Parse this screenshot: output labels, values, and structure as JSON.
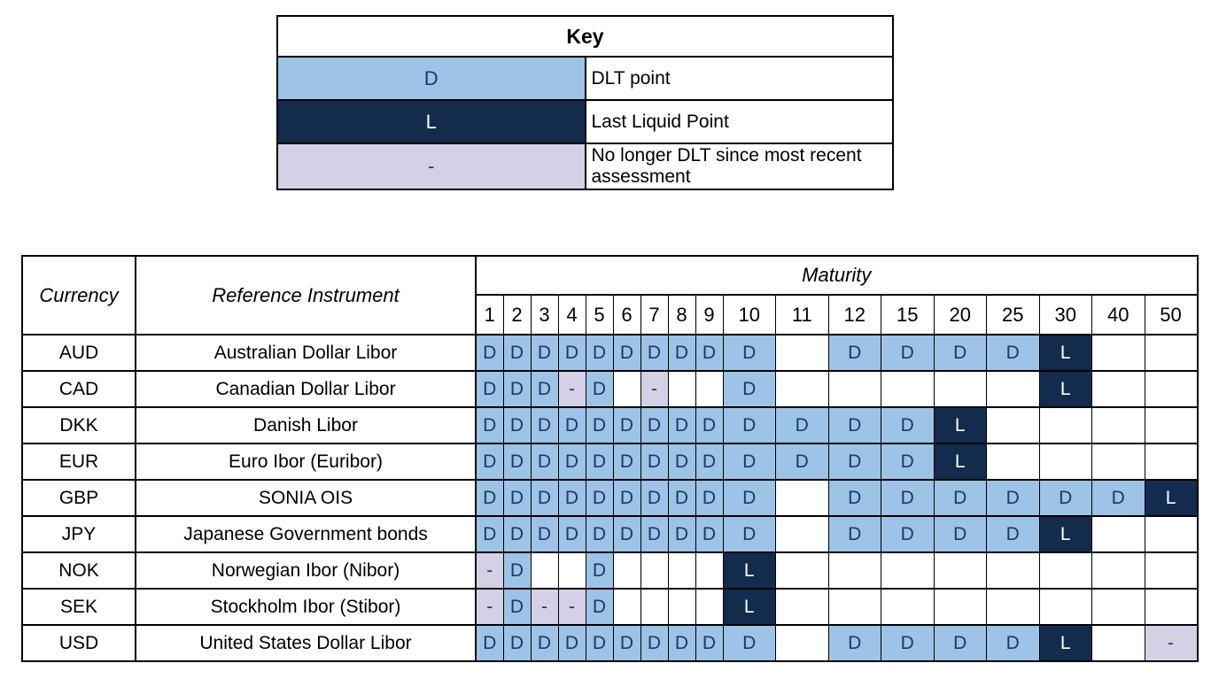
{
  "key": {
    "title": "Key",
    "items": [
      {
        "symbol": "D",
        "style": "dlt",
        "label": "DLT point"
      },
      {
        "symbol": "L",
        "style": "llp",
        "label": "Last Liquid Point"
      },
      {
        "symbol": "-",
        "style": "ndlt",
        "label": "No longer DLT since most recent assessment"
      }
    ]
  },
  "table": {
    "currency_header": "Currency",
    "instrument_header": "Reference Instrument",
    "maturity_header": "Maturity",
    "maturities": [
      "1",
      "2",
      "3",
      "4",
      "5",
      "6",
      "7",
      "8",
      "9",
      "10",
      "11",
      "12",
      "15",
      "20",
      "25",
      "30",
      "40",
      "50"
    ],
    "rows": [
      {
        "currency": "AUD",
        "instrument": "Australian Dollar Libor",
        "cells": [
          "D",
          "D",
          "D",
          "D",
          "D",
          "D",
          "D",
          "D",
          "D",
          "D",
          "",
          "D",
          "D",
          "D",
          "D",
          "L",
          "",
          ""
        ]
      },
      {
        "currency": "CAD",
        "instrument": "Canadian Dollar Libor",
        "cells": [
          "D",
          "D",
          "D",
          "-",
          "D",
          "",
          "-",
          "",
          "",
          "D",
          "",
          "",
          "",
          "",
          "",
          "L",
          "",
          ""
        ]
      },
      {
        "currency": "DKK",
        "instrument": "Danish Libor",
        "cells": [
          "D",
          "D",
          "D",
          "D",
          "D",
          "D",
          "D",
          "D",
          "D",
          "D",
          "D",
          "D",
          "D",
          "L",
          "",
          "",
          "",
          ""
        ]
      },
      {
        "currency": "EUR",
        "instrument": "Euro Ibor (Euribor)",
        "cells": [
          "D",
          "D",
          "D",
          "D",
          "D",
          "D",
          "D",
          "D",
          "D",
          "D",
          "D",
          "D",
          "D",
          "L",
          "",
          "",
          "",
          ""
        ]
      },
      {
        "currency": "GBP",
        "instrument": "SONIA OIS",
        "cells": [
          "D",
          "D",
          "D",
          "D",
          "D",
          "D",
          "D",
          "D",
          "D",
          "D",
          "",
          "D",
          "D",
          "D",
          "D",
          "D",
          "D",
          "L"
        ]
      },
      {
        "currency": "JPY",
        "instrument": "Japanese Government bonds",
        "cells": [
          "D",
          "D",
          "D",
          "D",
          "D",
          "D",
          "D",
          "D",
          "D",
          "D",
          "",
          "D",
          "D",
          "D",
          "D",
          "L",
          "",
          ""
        ]
      },
      {
        "currency": "NOK",
        "instrument": "Norwegian Ibor (Nibor)",
        "cells": [
          "-",
          "D",
          "",
          "",
          "D",
          "",
          "",
          "",
          "",
          "L",
          "",
          "",
          "",
          "",
          "",
          "",
          "",
          ""
        ]
      },
      {
        "currency": "SEK",
        "instrument": "Stockholm Ibor (Stibor)",
        "cells": [
          "-",
          "D",
          "-",
          "-",
          "D",
          "",
          "",
          "",
          "",
          "L",
          "",
          "",
          "",
          "",
          "",
          "",
          "",
          ""
        ]
      },
      {
        "currency": "USD",
        "instrument": "United States Dollar Libor",
        "cells": [
          "D",
          "D",
          "D",
          "D",
          "D",
          "D",
          "D",
          "D",
          "D",
          "D",
          "",
          "D",
          "D",
          "D",
          "D",
          "L",
          "",
          "-"
        ]
      }
    ]
  },
  "colors": {
    "dlt_point": "#9DC3E6",
    "last_liquid_point": "#132B4D",
    "no_longer_dlt": "#D5D0E5",
    "cell_text_dark": "#1F3864",
    "border": "#000000"
  },
  "chart_data": {
    "type": "table",
    "columns": [
      "Currency",
      "Reference Instrument",
      "1",
      "2",
      "3",
      "4",
      "5",
      "6",
      "7",
      "8",
      "9",
      "10",
      "11",
      "12",
      "15",
      "20",
      "25",
      "30",
      "40",
      "50"
    ],
    "legend": {
      "D": "DLT point",
      "L": "Last Liquid Point",
      "-": "No longer DLT since most recent assessment"
    },
    "rows": [
      [
        "AUD",
        "Australian Dollar Libor",
        "D",
        "D",
        "D",
        "D",
        "D",
        "D",
        "D",
        "D",
        "D",
        "D",
        "",
        "D",
        "D",
        "D",
        "D",
        "L",
        "",
        ""
      ],
      [
        "CAD",
        "Canadian Dollar Libor",
        "D",
        "D",
        "D",
        "-",
        "D",
        "",
        "-",
        "",
        "",
        "D",
        "",
        "",
        "",
        "",
        "",
        "L",
        "",
        ""
      ],
      [
        "DKK",
        "Danish Libor",
        "D",
        "D",
        "D",
        "D",
        "D",
        "D",
        "D",
        "D",
        "D",
        "D",
        "D",
        "D",
        "D",
        "L",
        "",
        "",
        "",
        ""
      ],
      [
        "EUR",
        "Euro Ibor (Euribor)",
        "D",
        "D",
        "D",
        "D",
        "D",
        "D",
        "D",
        "D",
        "D",
        "D",
        "D",
        "D",
        "D",
        "L",
        "",
        "",
        "",
        ""
      ],
      [
        "GBP",
        "SONIA OIS",
        "D",
        "D",
        "D",
        "D",
        "D",
        "D",
        "D",
        "D",
        "D",
        "D",
        "",
        "D",
        "D",
        "D",
        "D",
        "D",
        "D",
        "L"
      ],
      [
        "JPY",
        "Japanese Government bonds",
        "D",
        "D",
        "D",
        "D",
        "D",
        "D",
        "D",
        "D",
        "D",
        "D",
        "",
        "D",
        "D",
        "D",
        "D",
        "L",
        "",
        ""
      ],
      [
        "NOK",
        "Norwegian Ibor (Nibor)",
        "-",
        "D",
        "",
        "",
        "D",
        "",
        "",
        "",
        "",
        "L",
        "",
        "",
        "",
        "",
        "",
        "",
        "",
        ""
      ],
      [
        "SEK",
        "Stockholm Ibor (Stibor)",
        "-",
        "D",
        "-",
        "-",
        "D",
        "",
        "",
        "",
        "",
        "L",
        "",
        "",
        "",
        "",
        "",
        "",
        "",
        ""
      ],
      [
        "USD",
        "United States Dollar Libor",
        "D",
        "D",
        "D",
        "D",
        "D",
        "D",
        "D",
        "D",
        "D",
        "D",
        "",
        "D",
        "D",
        "D",
        "D",
        "L",
        "",
        "-"
      ]
    ]
  }
}
